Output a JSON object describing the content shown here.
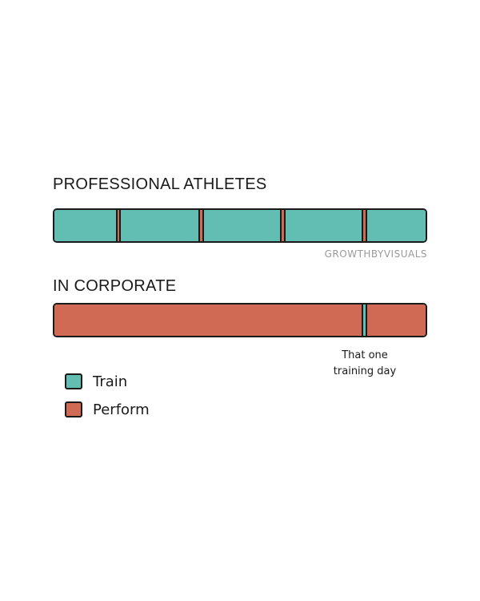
{
  "colors": {
    "train": "#62bdb2",
    "perform": "#d06a54",
    "outline": "#1a1a1a"
  },
  "athletes": {
    "title": "PROFESSIONAL ATHLETES",
    "segments": [
      {
        "type": "train",
        "share": 77
      },
      {
        "type": "perform",
        "share": 7
      },
      {
        "type": "train",
        "share": 97
      },
      {
        "type": "perform",
        "share": 7
      },
      {
        "type": "train",
        "share": 96
      },
      {
        "type": "perform",
        "share": 7
      },
      {
        "type": "train",
        "share": 96
      },
      {
        "type": "perform",
        "share": 7
      },
      {
        "type": "train",
        "share": 73
      }
    ]
  },
  "watermark": "GROWTHBYVISUALS",
  "corporate": {
    "title": "IN CORPORATE",
    "segments": [
      {
        "type": "perform",
        "share": 386
      },
      {
        "type": "train",
        "share": 8
      },
      {
        "type": "perform",
        "share": 73
      }
    ],
    "annotation_line1": "That one",
    "annotation_line2": "training day"
  },
  "legend": {
    "items": [
      {
        "type": "train",
        "label": "Train"
      },
      {
        "type": "perform",
        "label": "Perform"
      }
    ]
  }
}
